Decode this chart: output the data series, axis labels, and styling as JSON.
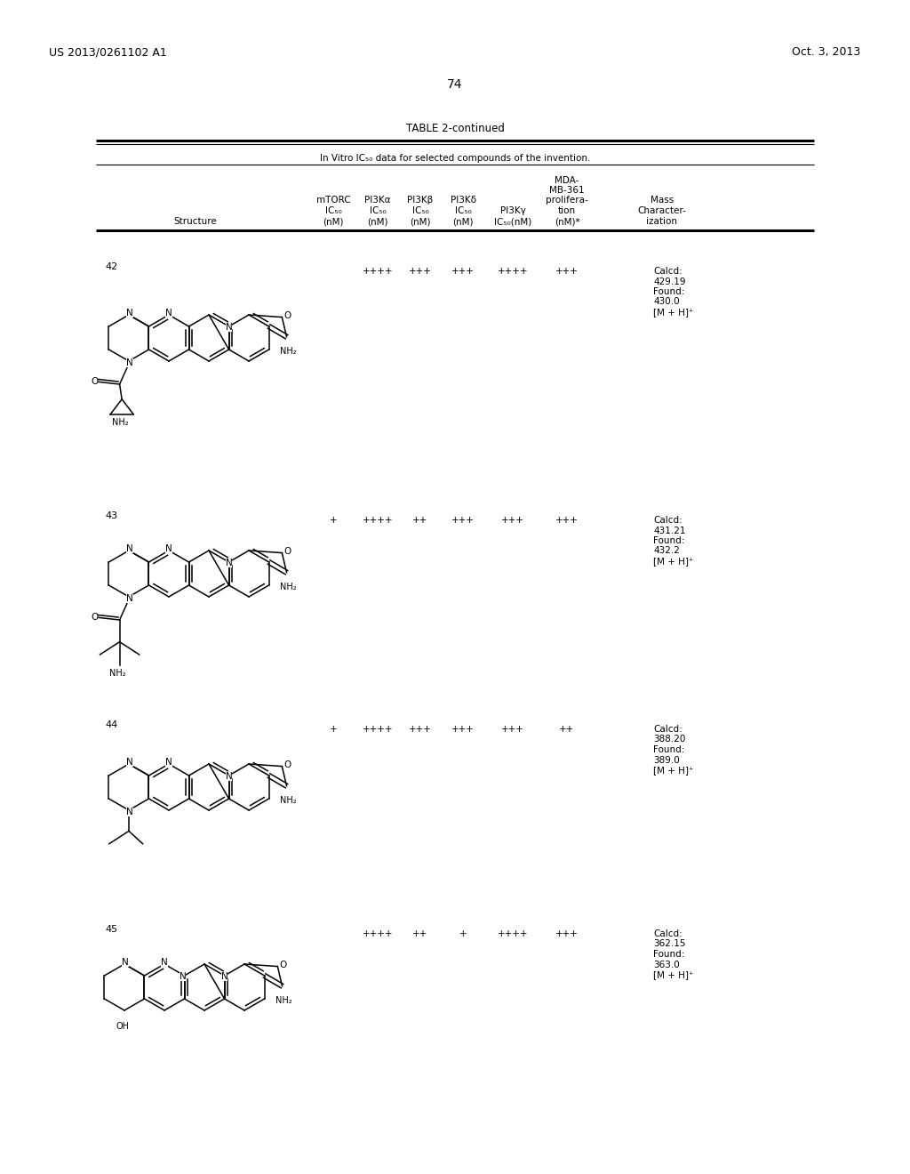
{
  "page_number": "74",
  "patent_number": "US 2013/0261102 A1",
  "patent_date": "Oct. 3, 2013",
  "table_title": "TABLE 2-continued",
  "table_subtitle": "In Vitro IC",
  "table_subtitle2": " data for selected compounds of the invention.",
  "col_headers_line1": [
    "mTORC",
    "PI3Kα",
    "PI3Kβ",
    "PI3Kδ",
    "",
    "MDA-",
    "Mass"
  ],
  "col_headers_line2": [
    "IC",
    "IC",
    "IC",
    "IC",
    "PI3Kγ",
    "MB-361",
    "Character-"
  ],
  "col_headers_line3": [
    "(nM)",
    "(nM)",
    "(nM)",
    "(nM)",
    "IC (nM)",
    "prolifera-",
    "ization"
  ],
  "col_headers_line4": [
    "",
    "",
    "",
    "",
    "",
    "tion",
    ""
  ],
  "col_headers_line5": [
    "",
    "",
    "",
    "",
    "",
    "(nM)*",
    ""
  ],
  "rows": [
    {
      "compound_num": "42",
      "mtorc": "",
      "pi3ka": "++++",
      "pi3kb": "+++",
      "pi3kd": "+++",
      "pi3kd2": "++++",
      "pi3kg": "+++",
      "mass": "Calcd:\n429.19\nFound:\n430.0\n[M + H]⁺"
    },
    {
      "compound_num": "43",
      "mtorc": "+",
      "pi3ka": "++++",
      "pi3kb": "++",
      "pi3kd": "+++",
      "pi3kd2": "+++",
      "pi3kg": "+++",
      "mass": "Calcd:\n431.21\nFound:\n432.2\n[M + H]⁺"
    },
    {
      "compound_num": "44",
      "mtorc": "+",
      "pi3ka": "++++",
      "pi3kb": "+++",
      "pi3kd": "+++",
      "pi3kd2": "+++",
      "pi3kg": "++",
      "mass": "Calcd:\n388.20\nFound:\n389.0\n[M + H]⁺"
    },
    {
      "compound_num": "45",
      "mtorc": "",
      "pi3ka": "++++",
      "pi3kb": "++",
      "pi3kd": "+",
      "pi3kd2": "++++",
      "pi3kg": "+++",
      "mass": "Calcd:\n362.15\nFound:\n363.0\n[M + H]⁺"
    }
  ],
  "background_color": "#ffffff",
  "text_color": "#000000"
}
